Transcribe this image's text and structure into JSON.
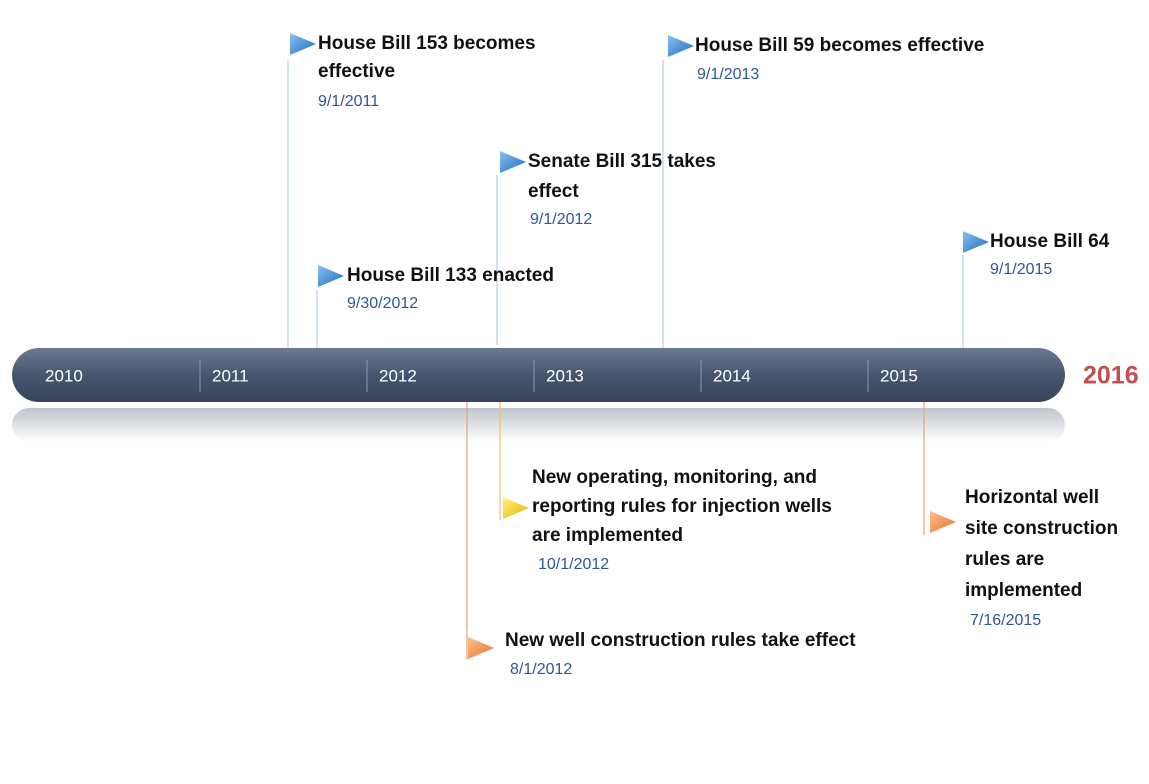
{
  "timeline": {
    "years": [
      "2010",
      "2011",
      "2012",
      "2013",
      "2014",
      "2015"
    ],
    "end_label": "2016",
    "events_above": [
      {
        "title": [
          "House Bill 153 becomes",
          "effective"
        ],
        "date": "9/1/2011"
      },
      {
        "title": [
          "House Bill 59 becomes effective"
        ],
        "date": "9/1/2013"
      },
      {
        "title": [
          "Senate Bill 315 takes",
          "effect"
        ],
        "date": "9/1/2012"
      },
      {
        "title": [
          "House Bill 133 enacted"
        ],
        "date": "9/30/2012"
      },
      {
        "title": [
          "House Bill 64"
        ],
        "date": "9/1/2015"
      }
    ],
    "events_below": [
      {
        "title": [
          "New operating, monitoring, and",
          "reporting rules for injection wells",
          "are implemented"
        ],
        "date": "10/1/2012"
      },
      {
        "title": [
          "New well construction rules take effect"
        ],
        "date": "8/1/2012"
      },
      {
        "title": [
          "Horizontal well",
          "site construction",
          "rules are",
          "implemented"
        ],
        "date": "7/16/2015"
      }
    ]
  }
}
